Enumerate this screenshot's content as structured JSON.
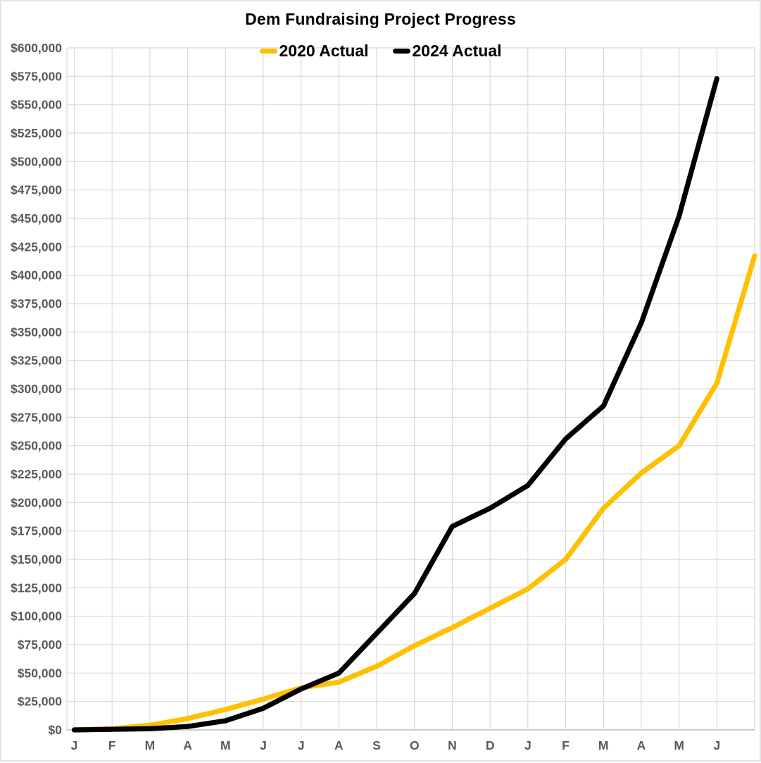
{
  "title": "Dem Fundraising Project Progress",
  "chart_data": {
    "type": "line",
    "title": "Dem Fundraising Project Progress",
    "x_labels": [
      "J",
      "F",
      "M",
      "A",
      "M",
      "J",
      "J",
      "A",
      "S",
      "O",
      "N",
      "D",
      "J",
      "F",
      "M",
      "A",
      "M",
      "J"
    ],
    "ylim": [
      0,
      600000
    ],
    "ytick_step": 25000,
    "y_tick_labels": [
      "$0",
      "$25,000",
      "$50,000",
      "$75,000",
      "$100,000",
      "$125,000",
      "$150,000",
      "$175,000",
      "$200,000",
      "$225,000",
      "$250,000",
      "$275,000",
      "$300,000",
      "$325,000",
      "$350,000",
      "$375,000",
      "$400,000",
      "$425,000",
      "$450,000",
      "$475,000",
      "$500,000",
      "$525,000",
      "$550,000",
      "$575,000",
      "$600,000"
    ],
    "grid": true,
    "legend_position": "top-center",
    "series": [
      {
        "name": "2020 Actual",
        "color": "#FFC000",
        "values": [
          0,
          1000,
          4000,
          10000,
          18000,
          27000,
          37000,
          42000,
          56000,
          74000,
          90000,
          107000,
          124000,
          150000,
          195000,
          226000,
          250000,
          305000,
          417000
        ],
        "note": "last point extends one half-month slot past the final axis label to the plot edge"
      },
      {
        "name": "2024 Actual",
        "color": "#000000",
        "values": [
          0,
          500,
          1000,
          3000,
          8000,
          19000,
          36000,
          50000,
          85000,
          120000,
          179000,
          195000,
          215000,
          256000,
          285000,
          358000,
          452000,
          573000
        ]
      }
    ]
  },
  "colors": {
    "background": "#FFFFFF",
    "gridline": "#D9D9D9",
    "axis_line": "#BFBFBF",
    "tick_label": "#595959",
    "title_text": "#000000",
    "series_2020": "#FFC000",
    "series_2024": "#000000"
  }
}
